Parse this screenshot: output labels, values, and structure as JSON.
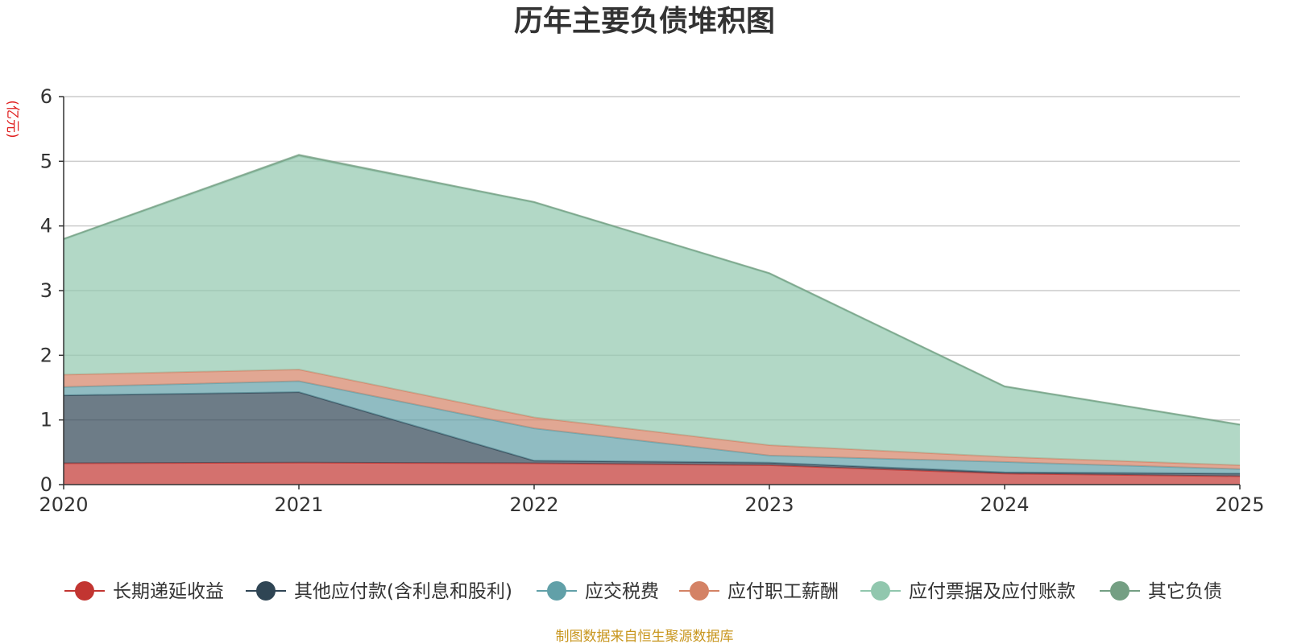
{
  "chart_data": {
    "type": "area",
    "stacked": true,
    "title": "历年主要负债堆积图",
    "unit_label": "(亿元)",
    "categories": [
      "2020",
      "2021",
      "2022",
      "2023",
      "2024",
      "2025"
    ],
    "ylim": [
      0,
      6
    ],
    "yticks": [
      "0",
      "1",
      "2",
      "3",
      "4",
      "5",
      "6"
    ],
    "grid": true,
    "legend_position": "bottom",
    "series": [
      {
        "name": "长期递延收益",
        "color": "#c23531",
        "values": [
          0.33,
          0.34,
          0.33,
          0.3,
          0.17,
          0.13
        ]
      },
      {
        "name": "其他应付款(含利息和股利)",
        "color": "#2f4554",
        "values": [
          1.05,
          1.09,
          0.04,
          0.04,
          0.02,
          0.04
        ]
      },
      {
        "name": "应交税费",
        "color": "#61a0a8",
        "values": [
          0.13,
          0.17,
          0.5,
          0.11,
          0.16,
          0.07
        ]
      },
      {
        "name": "应付职工薪酬",
        "color": "#d48265",
        "values": [
          0.19,
          0.18,
          0.17,
          0.16,
          0.08,
          0.06
        ]
      },
      {
        "name": "应付票据及应付账款",
        "color": "#91c7ae",
        "values": [
          2.09,
          3.3,
          3.32,
          2.65,
          1.08,
          0.62
        ]
      },
      {
        "name": "其它负债",
        "color": "#749f83",
        "values": [
          0.01,
          0.02,
          0.01,
          0.01,
          0.01,
          0.01
        ]
      }
    ],
    "source_note": "制图数据来自恒生聚源数据库"
  }
}
